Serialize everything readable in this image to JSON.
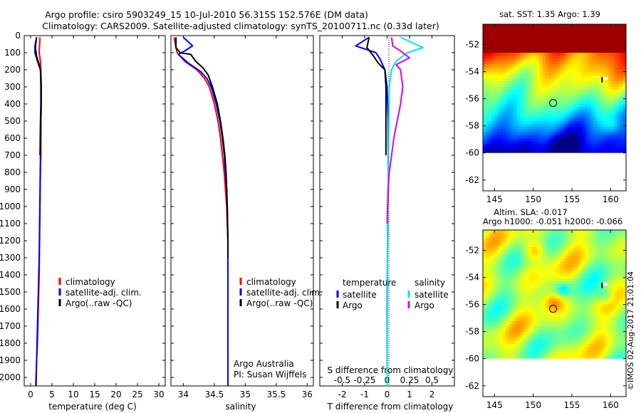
{
  "title": {
    "line1": "Argo profile: csiro 5903249_15 10-Jul-2010 56.315S 152.576E (DM data)",
    "line2": "Climatology: CARS2009. Satellite-adjusted climatology: synTS_20100711.nc (0.33d later)"
  },
  "colors": {
    "climatology": "#ff0000",
    "satellite": "#0000ff",
    "argo": "#000000",
    "sat_salinity": "#00e5e5",
    "argo_salinity": "#e000e0"
  },
  "depth_axis": {
    "ylim": [
      0,
      2050
    ],
    "ticks": [
      0,
      100,
      200,
      300,
      400,
      500,
      600,
      700,
      800,
      900,
      1000,
      1100,
      1200,
      1300,
      1400,
      1500,
      1600,
      1700,
      1800,
      1900,
      2000
    ]
  },
  "chart_data": [
    {
      "id": "temperature",
      "type": "line",
      "xlabel": "temperature (deg C)",
      "xlim": [
        -1.5,
        31.5
      ],
      "xticks": [
        0,
        5,
        10,
        15,
        20,
        25,
        30
      ],
      "legend": [
        "climatology",
        "satellite-adj. clim.",
        "Argo(..raw -QC)"
      ],
      "series": [
        {
          "name": "climatology",
          "color_key": "climatology",
          "points": [
            [
              2.2,
              10
            ],
            [
              2.1,
              50
            ],
            [
              2.0,
              100
            ],
            [
              2.3,
              150
            ],
            [
              2.4,
              200
            ],
            [
              2.5,
              300
            ],
            [
              2.5,
              400
            ],
            [
              2.4,
              500
            ],
            [
              2.4,
              700
            ],
            [
              2.3,
              800
            ],
            [
              2.2,
              1000
            ],
            [
              2.1,
              1200
            ],
            [
              2.0,
              1400
            ],
            [
              1.8,
              1600
            ],
            [
              1.6,
              1800
            ],
            [
              1.4,
              1900
            ],
            [
              1.3,
              2050
            ]
          ]
        },
        {
          "name": "satellite-adj. clim.",
          "color_key": "satellite",
          "points": [
            [
              1.4,
              10
            ],
            [
              1.0,
              60
            ],
            [
              1.0,
              100
            ],
            [
              1.6,
              150
            ],
            [
              2.3,
              200
            ],
            [
              2.5,
              300
            ],
            [
              2.5,
              400
            ],
            [
              2.4,
              500
            ],
            [
              2.3,
              700
            ],
            [
              2.2,
              900
            ],
            [
              2.1,
              1100
            ],
            [
              2.0,
              1300
            ],
            [
              1.8,
              1500
            ],
            [
              1.6,
              1700
            ],
            [
              1.4,
              1900
            ],
            [
              1.2,
              2050
            ]
          ]
        },
        {
          "name": "Argo(..raw -QC)",
          "color_key": "argo",
          "points": [
            [
              1.4,
              10
            ],
            [
              1.1,
              70
            ],
            [
              1.4,
              120
            ],
            [
              1.9,
              160
            ],
            [
              2.3,
              200
            ],
            [
              2.4,
              300
            ],
            [
              2.4,
              400
            ],
            [
              2.3,
              500
            ],
            [
              2.2,
              700
            ]
          ]
        }
      ]
    },
    {
      "id": "salinity",
      "type": "line",
      "xlabel": "salinity",
      "xlim": [
        33.8,
        36.1
      ],
      "xticks": [
        34,
        34.5,
        35,
        35.5,
        36
      ],
      "legend": [
        "climatology",
        "satellite-adj. clim.",
        "Argo(..raw -QC)"
      ],
      "annotation": [
        "Argo Australia",
        "PI: Susan Wijffels"
      ],
      "series": [
        {
          "name": "climatology",
          "color_key": "climatology",
          "points": [
            [
              33.85,
              10
            ],
            [
              33.87,
              50
            ],
            [
              33.9,
              100
            ],
            [
              34.02,
              150
            ],
            [
              34.22,
              200
            ],
            [
              34.34,
              250
            ],
            [
              34.42,
              300
            ],
            [
              34.5,
              400
            ],
            [
              34.56,
              500
            ],
            [
              34.6,
              600
            ],
            [
              34.63,
              700
            ],
            [
              34.66,
              800
            ],
            [
              34.68,
              900
            ],
            [
              34.7,
              1000
            ],
            [
              34.71,
              1100
            ],
            [
              34.72,
              1200
            ],
            [
              34.72,
              1400
            ],
            [
              34.72,
              1600
            ],
            [
              34.72,
              1800
            ],
            [
              34.72,
              2000
            ],
            [
              34.72,
              2050
            ]
          ]
        },
        {
          "name": "satellite-adj. clim.",
          "color_key": "satellite",
          "points": [
            [
              34.0,
              10
            ],
            [
              34.15,
              60
            ],
            [
              34.02,
              90
            ],
            [
              33.92,
              110
            ],
            [
              34.08,
              160
            ],
            [
              34.28,
              210
            ],
            [
              34.38,
              250
            ],
            [
              34.45,
              300
            ],
            [
              34.53,
              400
            ],
            [
              34.59,
              500
            ],
            [
              34.63,
              600
            ],
            [
              34.66,
              700
            ],
            [
              34.68,
              800
            ],
            [
              34.7,
              900
            ],
            [
              34.71,
              1000
            ],
            [
              34.72,
              1200
            ],
            [
              34.72,
              1600
            ],
            [
              34.72,
              2050
            ]
          ]
        },
        {
          "name": "Argo(..raw -QC)",
          "color_key": "argo",
          "points": [
            [
              33.88,
              10
            ],
            [
              33.88,
              70
            ],
            [
              33.95,
              100
            ],
            [
              34.12,
              110
            ],
            [
              34.2,
              150
            ],
            [
              34.32,
              190
            ],
            [
              34.4,
              230
            ],
            [
              34.47,
              300
            ],
            [
              34.55,
              400
            ],
            [
              34.6,
              500
            ],
            [
              34.64,
              600
            ],
            [
              34.67,
              700
            ],
            [
              34.69,
              800
            ],
            [
              34.7,
              900
            ],
            [
              34.71,
              1000
            ],
            [
              34.72,
              1200
            ],
            [
              34.72,
              1300
            ]
          ]
        }
      ]
    },
    {
      "id": "difference",
      "type": "line",
      "xlabel": "T difference from climatology",
      "xlabel_top": "S difference from climatology",
      "xlim": [
        -3,
        3
      ],
      "xticks": [
        -2,
        -1,
        0,
        1,
        2
      ],
      "xticks_top_pos": [
        -2,
        -1,
        0,
        1,
        2
      ],
      "xticks_top_labels": [
        "-0.5",
        "-0.25",
        "0",
        "0.25",
        "0.5"
      ],
      "legend_temperature_title": "temperature",
      "legend_salinity_title": "salinity",
      "legend_temperature": [
        "satellite",
        "Argo"
      ],
      "legend_salinity": [
        "satellite",
        "Argo"
      ],
      "series": [
        {
          "name": "temperature satellite",
          "color_key": "satellite",
          "points": [
            [
              -0.8,
              10
            ],
            [
              -1.4,
              60
            ],
            [
              -0.5,
              100
            ],
            [
              -0.3,
              140
            ],
            [
              -0.1,
              200
            ],
            [
              0,
              300
            ],
            [
              0.05,
              500
            ],
            [
              0.05,
              800
            ],
            [
              0.02,
              1200
            ],
            [
              0,
              1600
            ],
            [
              0,
              2050
            ]
          ]
        },
        {
          "name": "temperature Argo",
          "color_key": "argo",
          "points": [
            [
              -0.8,
              10
            ],
            [
              -0.9,
              70
            ],
            [
              -0.6,
              120
            ],
            [
              -0.4,
              160
            ],
            [
              -0.1,
              200
            ],
            [
              -0.05,
              300
            ],
            [
              -0.05,
              500
            ],
            [
              -0.05,
              700
            ]
          ]
        },
        {
          "name": "salinity satellite",
          "color_key": "sat_salinity",
          "points": [
            [
              0.6,
              10
            ],
            [
              1.1,
              40
            ],
            [
              1.6,
              70
            ],
            [
              0.9,
              100
            ],
            [
              0.4,
              150
            ],
            [
              0.2,
              200
            ],
            [
              0.1,
              300
            ],
            [
              0.08,
              500
            ],
            [
              0.05,
              800
            ],
            [
              0.02,
              1200
            ],
            [
              0,
              2050
            ]
          ]
        },
        {
          "name": "salinity Argo",
          "color_key": "argo_salinity",
          "points": [
            [
              0.2,
              10
            ],
            [
              0.25,
              60
            ],
            [
              0.6,
              90
            ],
            [
              1.0,
              130
            ],
            [
              0.7,
              150
            ],
            [
              0.4,
              170
            ],
            [
              0.6,
              200
            ],
            [
              0.7,
              300
            ],
            [
              0.6,
              400
            ],
            [
              0.45,
              500
            ],
            [
              0.3,
              600
            ],
            [
              0.2,
              700
            ],
            [
              0.1,
              800
            ],
            [
              0.05,
              900
            ],
            [
              0.02,
              1000
            ],
            [
              0,
              1100
            ]
          ]
        }
      ]
    }
  ],
  "maps": {
    "xlim": [
      143.5,
      162
    ],
    "ylim": [
      -62.8,
      -50.5
    ],
    "xticks": [
      145,
      150,
      155,
      160
    ],
    "yticks": [
      -52,
      -54,
      -56,
      -58,
      -60,
      -62
    ],
    "float_lon": 152.576,
    "float_lat": -56.315,
    "sst": {
      "title": "sat. SST: 1.35 Argo: 1.39"
    },
    "sla": {
      "title1": "Altim. SLA: -0.017",
      "title2": "Argo h1000: -0.051 h2000: -0.066"
    }
  },
  "credit": "©IMOS 02-Aug-2017 21:01:04"
}
